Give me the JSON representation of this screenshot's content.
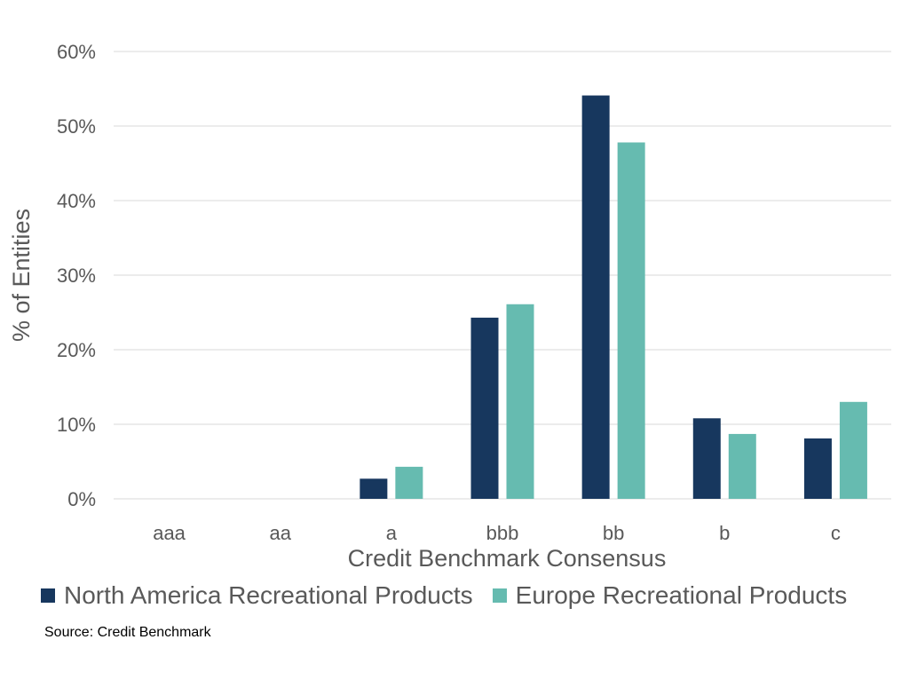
{
  "chart_data": {
    "type": "bar",
    "categories": [
      "aaa",
      "aa",
      "a",
      "bbb",
      "bb",
      "b",
      "c"
    ],
    "series": [
      {
        "name": "North America Recreational Products",
        "color": "#17375e",
        "values": [
          0,
          0,
          2.7,
          24.3,
          54.1,
          10.8,
          8.1
        ]
      },
      {
        "name": "Europe Recreational Products",
        "color": "#66bbb0",
        "values": [
          0,
          0,
          4.3,
          26.1,
          47.8,
          8.7,
          13.0
        ]
      }
    ],
    "xlabel": "Credit Benchmark Consensus",
    "ylabel": "% of Entities",
    "ylim": [
      0,
      60
    ],
    "yticks": [
      0,
      10,
      20,
      30,
      40,
      50,
      60
    ],
    "ytick_labels": [
      "0%",
      "10%",
      "20%",
      "30%",
      "40%",
      "50%",
      "60%"
    ],
    "grid": true,
    "legend_position": "bottom"
  },
  "source": "Source: Credit Benchmark"
}
